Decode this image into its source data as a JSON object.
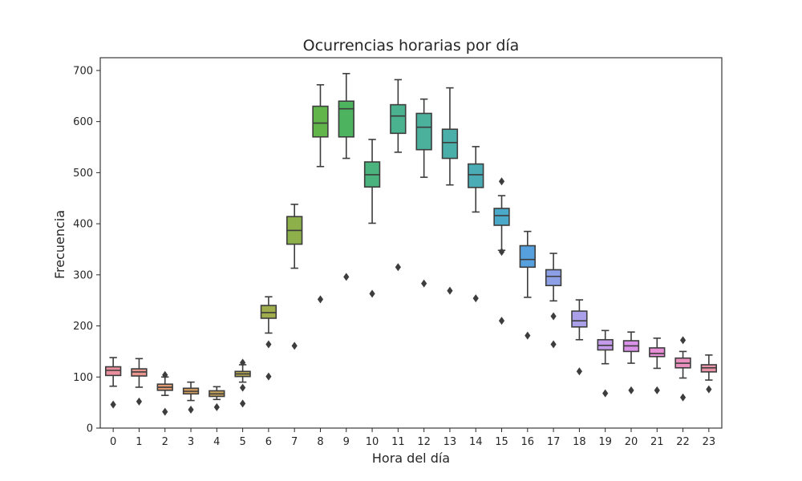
{
  "chart_data": {
    "type": "box",
    "title": "Ocurrencias horarias por día",
    "xlabel": "Hora del día",
    "ylabel": "Frecuencia",
    "ylim": [
      0,
      725
    ],
    "yticks": [
      0,
      100,
      200,
      300,
      400,
      500,
      600,
      700
    ],
    "grid": false,
    "categories": [
      "0",
      "1",
      "2",
      "3",
      "4",
      "5",
      "6",
      "7",
      "8",
      "9",
      "10",
      "11",
      "12",
      "13",
      "14",
      "15",
      "16",
      "17",
      "18",
      "19",
      "20",
      "21",
      "22",
      "23"
    ],
    "boxes": [
      {
        "category": "0",
        "min": 82,
        "q1": 103,
        "median": 113,
        "q3": 120,
        "max": 138,
        "fliers": [
          46
        ],
        "color": "#ea8f9e"
      },
      {
        "category": "1",
        "min": 80,
        "q1": 102,
        "median": 110,
        "q3": 116,
        "max": 136,
        "fliers": [
          52
        ],
        "color": "#e9958f"
      },
      {
        "category": "2",
        "min": 64,
        "q1": 74,
        "median": 80,
        "q3": 86,
        "max": 100,
        "fliers": [
          32,
          104
        ],
        "color": "#e09a72"
      },
      {
        "category": "3",
        "min": 54,
        "q1": 67,
        "median": 72,
        "q3": 78,
        "max": 90,
        "fliers": [
          36
        ],
        "color": "#d39e5f"
      },
      {
        "category": "4",
        "min": 56,
        "q1": 62,
        "median": 67,
        "q3": 73,
        "max": 81,
        "fliers": [
          41
        ],
        "color": "#c6a25a"
      },
      {
        "category": "5",
        "min": 90,
        "q1": 101,
        "median": 106,
        "q3": 111,
        "max": 124,
        "fliers": [
          48,
          79,
          128
        ],
        "color": "#b4a752"
      },
      {
        "category": "6",
        "min": 186,
        "q1": 215,
        "median": 226,
        "q3": 240,
        "max": 257,
        "fliers": [
          101,
          164
        ],
        "color": "#a0ad4c"
      },
      {
        "category": "7",
        "min": 313,
        "q1": 360,
        "median": 387,
        "q3": 414,
        "max": 438,
        "fliers": [
          161
        ],
        "color": "#8db04a"
      },
      {
        "category": "8",
        "min": 512,
        "q1": 570,
        "median": 597,
        "q3": 630,
        "max": 672,
        "fliers": [
          252
        ],
        "color": "#62b54a"
      },
      {
        "category": "9",
        "min": 528,
        "q1": 570,
        "median": 625,
        "q3": 640,
        "max": 694,
        "fliers": [
          296
        ],
        "color": "#4db35e"
      },
      {
        "category": "10",
        "min": 401,
        "q1": 472,
        "median": 496,
        "q3": 521,
        "max": 565,
        "fliers": [
          263
        ],
        "color": "#4bb37d"
      },
      {
        "category": "11",
        "min": 540,
        "q1": 577,
        "median": 611,
        "q3": 633,
        "max": 682,
        "fliers": [
          315
        ],
        "color": "#4bb290"
      },
      {
        "category": "12",
        "min": 491,
        "q1": 545,
        "median": 589,
        "q3": 616,
        "max": 644,
        "fliers": [
          283
        ],
        "color": "#4bb19d"
      },
      {
        "category": "13",
        "min": 476,
        "q1": 528,
        "median": 559,
        "q3": 585,
        "max": 666,
        "fliers": [
          269
        ],
        "color": "#4bafa9"
      },
      {
        "category": "14",
        "min": 423,
        "q1": 471,
        "median": 496,
        "q3": 517,
        "max": 551,
        "fliers": [
          254
        ],
        "color": "#4aadb6"
      },
      {
        "category": "15",
        "min": 348,
        "q1": 397,
        "median": 416,
        "q3": 430,
        "max": 455,
        "fliers": [
          210,
          345,
          483
        ],
        "color": "#4aa8c8"
      },
      {
        "category": "16",
        "min": 256,
        "q1": 315,
        "median": 330,
        "q3": 357,
        "max": 385,
        "fliers": [
          181
        ],
        "color": "#56a1dd"
      },
      {
        "category": "17",
        "min": 249,
        "q1": 279,
        "median": 297,
        "q3": 310,
        "max": 342,
        "fliers": [
          164,
          219
        ],
        "color": "#8d9fe5"
      },
      {
        "category": "18",
        "min": 173,
        "q1": 198,
        "median": 210,
        "q3": 229,
        "max": 251,
        "fliers": [
          111
        ],
        "color": "#aaa0ea"
      },
      {
        "category": "19",
        "min": 126,
        "q1": 153,
        "median": 162,
        "q3": 173,
        "max": 191,
        "fliers": [
          68
        ],
        "color": "#c49aea"
      },
      {
        "category": "20",
        "min": 127,
        "q1": 150,
        "median": 161,
        "q3": 171,
        "max": 188,
        "fliers": [
          74
        ],
        "color": "#d992e7"
      },
      {
        "category": "21",
        "min": 117,
        "q1": 140,
        "median": 146,
        "q3": 157,
        "max": 176,
        "fliers": [
          74
        ],
        "color": "#e78ed6"
      },
      {
        "category": "22",
        "min": 98,
        "q1": 118,
        "median": 127,
        "q3": 137,
        "max": 150,
        "fliers": [
          60,
          172
        ],
        "color": "#ea90be"
      },
      {
        "category": "23",
        "min": 94,
        "q1": 110,
        "median": 118,
        "q3": 124,
        "max": 143,
        "fliers": [
          76
        ],
        "color": "#ea93a8"
      }
    ]
  }
}
